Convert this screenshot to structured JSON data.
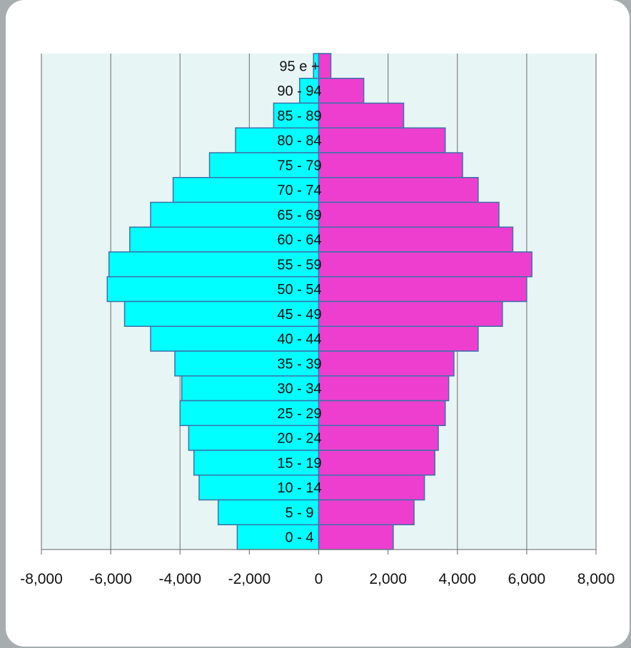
{
  "chart_data": {
    "type": "bar",
    "orientation": "horizontal",
    "categories": [
      "95 e +",
      "90 - 94",
      "85 - 89",
      "80 - 84",
      "75 - 79",
      "70 - 74",
      "65 - 69",
      "60 - 64",
      "55 - 59",
      "50 - 54",
      "45 - 49",
      "40 - 44",
      "35 - 39",
      "30 - 34",
      "25 - 29",
      "20 - 24",
      "15 - 19",
      "10 - 14",
      "5 - 9",
      "0 - 4"
    ],
    "series": [
      {
        "color": "#00ffff",
        "values": [
          -150,
          -550,
          -1300,
          -2400,
          -3150,
          -4200,
          -4850,
          -5450,
          -6050,
          -6100,
          -5600,
          -4850,
          -4150,
          -3950,
          -4000,
          -3750,
          -3600,
          -3450,
          -2900,
          -2350
        ]
      },
      {
        "color": "#ee3ecf",
        "values": [
          350,
          1300,
          2450,
          3650,
          4150,
          4600,
          5200,
          5600,
          6150,
          6000,
          5300,
          4600,
          3900,
          3750,
          3650,
          3450,
          3350,
          3050,
          2750,
          2150
        ]
      }
    ],
    "xlim": [
      -8000,
      8000
    ],
    "x_ticks": [
      -8000,
      -6000,
      -4000,
      -2000,
      0,
      2000,
      4000,
      6000,
      8000
    ],
    "x_tick_labels": [
      "-8,000",
      "-6,000",
      "-4,000",
      "-2,000",
      "0",
      "2,000",
      "4,000",
      "6,000",
      "8,000"
    ],
    "grid": "vertical",
    "colors": {
      "plot_bg": "#e8f5f5",
      "grid": "#808080",
      "bar_edge": "#3a72a8"
    }
  }
}
